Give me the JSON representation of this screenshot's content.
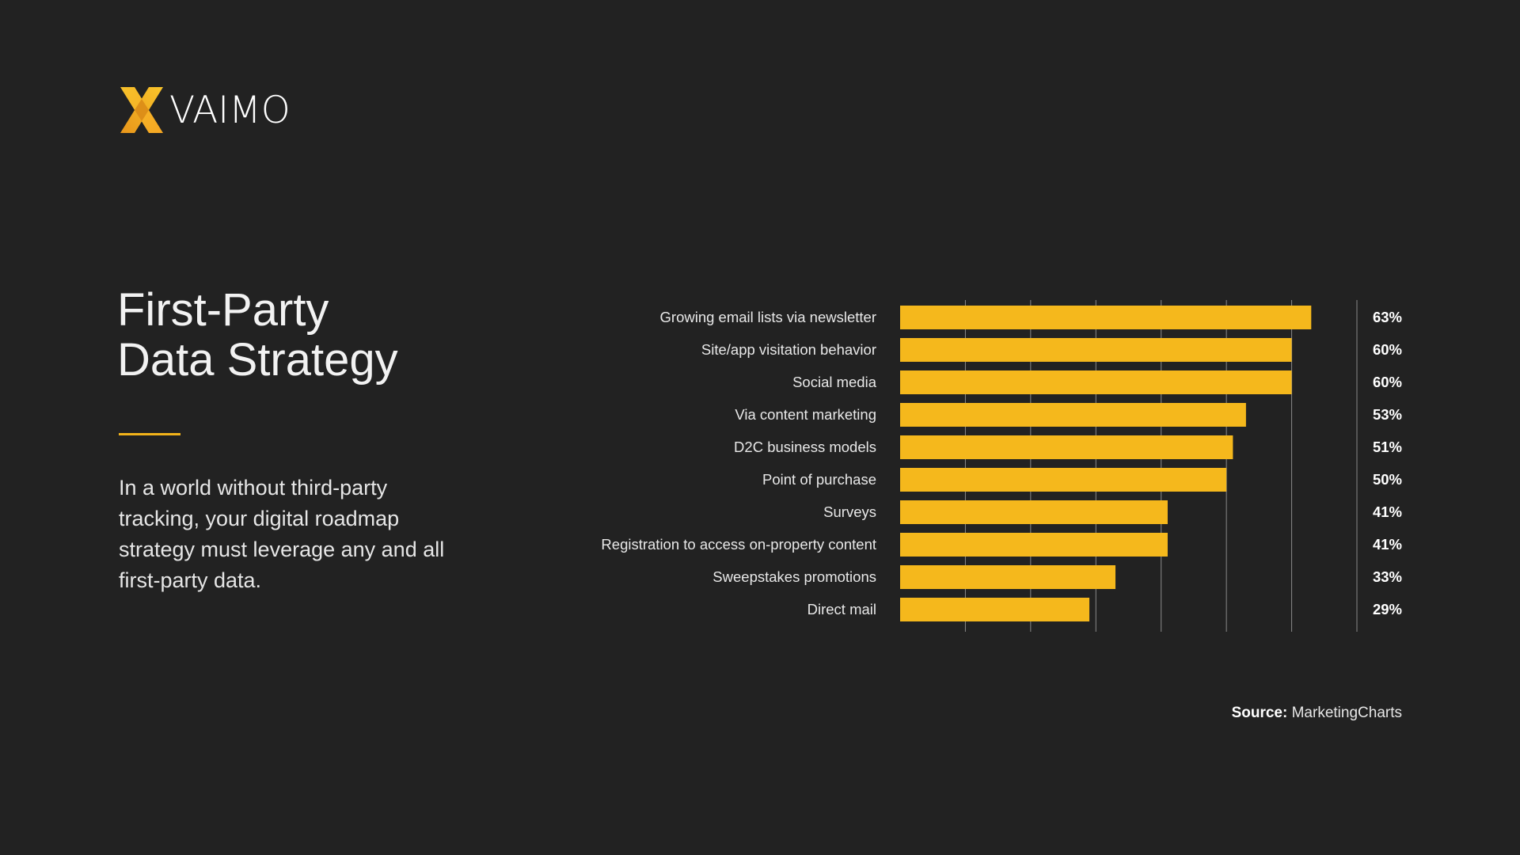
{
  "brand": {
    "name": "VAIMO",
    "icon": "vaimo-x-logo",
    "accent_color": "#f5b81c",
    "accent_dark": "#d98a16"
  },
  "headline": {
    "line1": "First-Party",
    "line2": "Data Strategy"
  },
  "description": "In a world without third-party tracking, your digital roadmap strategy must leverage any and all first-party data.",
  "source": {
    "label": "Source:",
    "value": "MarketingCharts"
  },
  "chart_data": {
    "type": "bar",
    "orientation": "horizontal",
    "categories": [
      "Growing email lists via newsletter",
      "Site/app visitation behavior",
      "Social media",
      "Via content marketing",
      "D2C business models",
      "Point of purchase",
      "Surveys",
      "Registration to access on-property content",
      "Sweepstakes promotions",
      "Direct mail"
    ],
    "values": [
      63,
      60,
      60,
      53,
      51,
      50,
      41,
      41,
      33,
      29
    ],
    "value_labels": [
      "63%",
      "60%",
      "60%",
      "53%",
      "51%",
      "50%",
      "41%",
      "41%",
      "33%",
      "29%"
    ],
    "xlim": [
      0,
      70
    ],
    "gridlines": [
      10,
      20,
      30,
      40,
      50,
      60
    ],
    "grid": true,
    "bar_color": "#f5b81c",
    "grid_color": "#8a8a8a"
  }
}
